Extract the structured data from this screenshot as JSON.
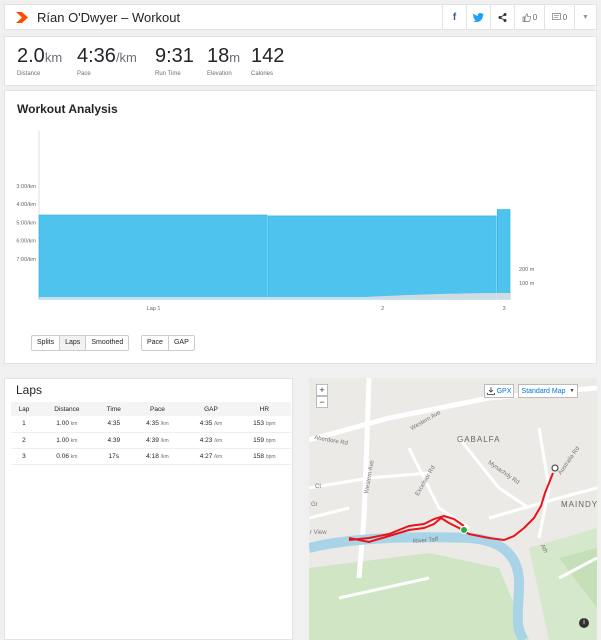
{
  "header": {
    "title": "Rían O'Dwyer – Workout",
    "kudos_count": "0",
    "comment_count": "0"
  },
  "stats": [
    {
      "value": "2.0",
      "unit": "km",
      "label": "Distance"
    },
    {
      "value": "4:36",
      "unit": "/km",
      "label": "Pace"
    },
    {
      "value": "9:31",
      "unit": "",
      "label": "Run Time"
    },
    {
      "value": "18",
      "unit": "m",
      "label": "Elevation"
    },
    {
      "value": "142",
      "unit": "",
      "label": "Calories"
    }
  ],
  "analysis": {
    "title": "Workout Analysis",
    "buttons_group1": [
      "Splits",
      "Laps",
      "Smoothed"
    ],
    "buttons_group2": [
      "Pace",
      "GAP"
    ]
  },
  "chart_data": {
    "type": "bar",
    "categories": [
      "Lap 1",
      "2",
      "3"
    ],
    "lap_distances_km": [
      1.0,
      1.0,
      0.06
    ],
    "values": [
      4.6,
      4.65,
      4.3
    ],
    "y_axis_ticks": [
      "3:00/km",
      "4:00/km",
      "5:00/km",
      "6:00/km",
      "7:00/km"
    ],
    "y_axis_tick_minutes": [
      3,
      4,
      5,
      6,
      7
    ],
    "ylim_min_per_km": [
      0,
      9.2
    ],
    "elevation_ticks": [
      "200 m",
      "100 m"
    ],
    "bar_color": "#4dc3ee",
    "bar_edge_color": "#29b1e4"
  },
  "laps": {
    "title": "Laps",
    "columns": [
      "Lap",
      "Distance",
      "Time",
      "Pace",
      "GAP",
      "HR"
    ],
    "rows": [
      {
        "lap": "1",
        "distance": "1.00",
        "distance_unit": "km",
        "time": "4:35",
        "pace": "4:35",
        "pace_unit": "/km",
        "gap": "4:35",
        "gap_unit": "/km",
        "hr": "153",
        "hr_unit": "bpm"
      },
      {
        "lap": "2",
        "distance": "1.00",
        "distance_unit": "km",
        "time": "4:39",
        "pace": "4:39",
        "pace_unit": "/km",
        "gap": "4:23",
        "gap_unit": "/km",
        "hr": "159",
        "hr_unit": "bpm"
      },
      {
        "lap": "3",
        "distance": "0.06",
        "distance_unit": "km",
        "time": "17s",
        "pace": "4:18",
        "pace_unit": "/km",
        "gap": "4:27",
        "gap_unit": "/km",
        "hr": "158",
        "hr_unit": "bpm"
      }
    ]
  },
  "map": {
    "gpx_label": "GPX",
    "map_type": "Standard Map",
    "zoom_in": "+",
    "zoom_out": "−",
    "labels": [
      "GABALFA",
      "MAINDY",
      "Western Ave",
      "Western Ave",
      "Aberdore Rd",
      "Excelsior Rd",
      "Mynachdy Rd",
      "Australia Rd",
      "River Taff",
      "r View",
      "Ct",
      "Gr",
      "Ath"
    ],
    "colors": {
      "route": "#e8141b",
      "water": "#a9d4e8",
      "park": "#c9e2bf",
      "road": "#ffffff"
    }
  },
  "colors": {
    "brand": "#fc4c02",
    "facebook": "#3b5998",
    "twitter": "#1da1f2"
  }
}
